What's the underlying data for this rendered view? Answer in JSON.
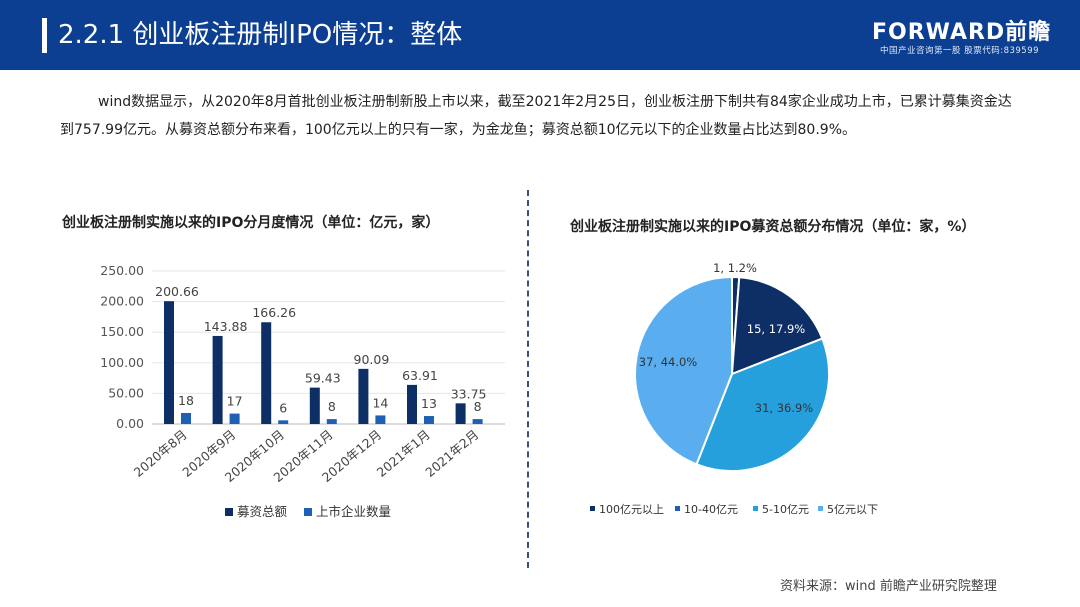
{
  "header": {
    "title": "2.2.1 创业板注册制IPO情况：整体",
    "brand": "FORWARD前瞻",
    "brand_sub": "中国产业咨询第一股 股票代码:839599"
  },
  "intro": "wind数据显示，从2020年8月首批创业板注册制新股上市以来，截至2021年2月25日，创业板注册下制共有84家企业成功上市，已累计募集资金达到757.99亿元。从募资总额分布来看，100亿元以上的只有一家，为金龙鱼；募资总额10亿元以下的企业数量占比达到80.9%。",
  "source": "资料来源：wind 前瞻产业研究院整理",
  "colors": {
    "dark": "#0d2f66",
    "mid": "#1f60b5",
    "teal": "#26a0dd",
    "light": "#5aaef0"
  },
  "chart_data": [
    {
      "type": "bar",
      "title": "创业板注册制实施以来的IPO分月度情况（单位：亿元，家）",
      "categories": [
        "2020年8月",
        "2020年9月",
        "2020年10月",
        "2020年11月",
        "2020年12月",
        "2021年1月",
        "2021年2月"
      ],
      "series": [
        {
          "name": "募资总额",
          "values": [
            200.66,
            143.88,
            166.26,
            59.43,
            90.09,
            63.91,
            33.75
          ],
          "labels": [
            "200.66",
            "143.88",
            "166.26",
            "59.43",
            "90.09",
            "63.91",
            "33.75"
          ]
        },
        {
          "name": "上市企业数量",
          "values": [
            18,
            17,
            6,
            8,
            14,
            13,
            8
          ],
          "labels": [
            "18",
            "17",
            "6",
            "8",
            "14",
            "13",
            "8"
          ]
        }
      ],
      "yticks": [
        "0.00",
        "50.00",
        "100.00",
        "150.00",
        "200.00",
        "250.00"
      ],
      "ylim": [
        0,
        250
      ],
      "grid": true,
      "legend": "bottom"
    },
    {
      "type": "pie",
      "title": "创业板注册制实施以来的IPO募资总额分布情况（单位：家，%）",
      "slices": [
        {
          "name": "100亿元以上",
          "value": 1,
          "label": "1, 1.2%"
        },
        {
          "name": "10-40亿元",
          "value": 15,
          "label": "15, 17.9%"
        },
        {
          "name": "5-10亿元",
          "value": 31,
          "label": "31, 36.9%"
        },
        {
          "name": "5亿元以下",
          "value": 37,
          "label": "37, 44.0%"
        }
      ],
      "legend": "bottom"
    }
  ]
}
